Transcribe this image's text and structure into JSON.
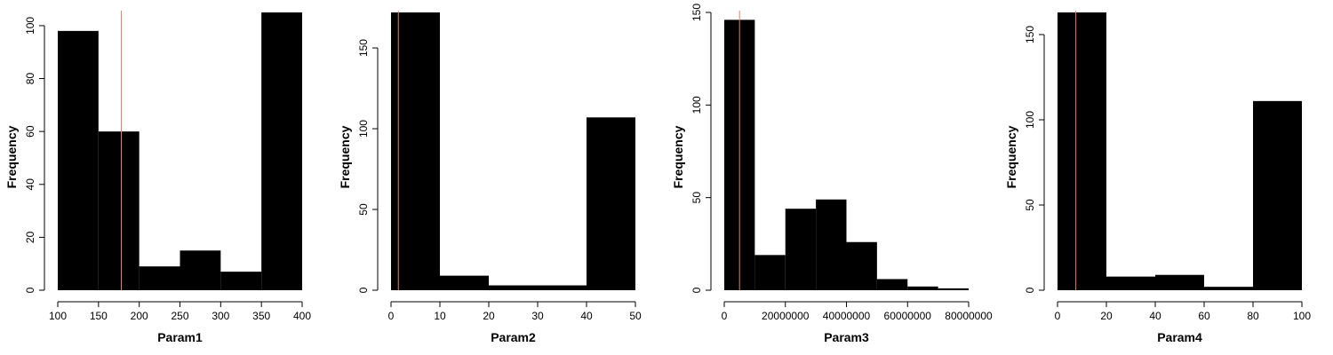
{
  "chart_data": [
    {
      "type": "bar",
      "xlabel": "Param1",
      "ylabel": "Frequency",
      "bins": [
        [
          100,
          150
        ],
        [
          150,
          200
        ],
        [
          200,
          250
        ],
        [
          250,
          300
        ],
        [
          300,
          350
        ],
        [
          350,
          400
        ]
      ],
      "values": [
        98,
        60,
        9,
        15,
        7,
        105
      ],
      "xlim": [
        100,
        400
      ],
      "ylim": [
        0,
        105
      ],
      "xticks": [
        100,
        150,
        200,
        250,
        300,
        350,
        400
      ],
      "yticks": [
        0,
        20,
        40,
        60,
        80,
        100
      ],
      "vline": 178,
      "grid": false
    },
    {
      "type": "bar",
      "xlabel": "Param2",
      "ylabel": "Frequency",
      "bins": [
        [
          0,
          10
        ],
        [
          10,
          20
        ],
        [
          20,
          30
        ],
        [
          30,
          40
        ],
        [
          40,
          50
        ]
      ],
      "values": [
        172,
        9,
        3,
        3,
        107
      ],
      "xlim": [
        0,
        50
      ],
      "ylim": [
        0,
        172
      ],
      "xticks": [
        0,
        10,
        20,
        30,
        40,
        50
      ],
      "yticks": [
        0,
        50,
        100,
        150
      ],
      "vline": 1.5,
      "grid": false
    },
    {
      "type": "bar",
      "xlabel": "Param3",
      "ylabel": "Frequency",
      "bins": [
        [
          0,
          10000000
        ],
        [
          10000000,
          20000000
        ],
        [
          20000000,
          30000000
        ],
        [
          30000000,
          40000000
        ],
        [
          40000000,
          50000000
        ],
        [
          50000000,
          60000000
        ],
        [
          60000000,
          70000000
        ],
        [
          70000000,
          80000000
        ]
      ],
      "values": [
        146,
        19,
        44,
        49,
        26,
        6,
        2,
        1
      ],
      "xlim": [
        0,
        80000000
      ],
      "ylim": [
        0,
        150
      ],
      "xticks": [
        0,
        20000000,
        40000000,
        60000000,
        80000000
      ],
      "yticks": [
        0,
        50,
        100,
        150
      ],
      "vline": 5000000,
      "grid": false
    },
    {
      "type": "bar",
      "xlabel": "Param4",
      "ylabel": "Frequency",
      "bins": [
        [
          0,
          20
        ],
        [
          20,
          40
        ],
        [
          40,
          60
        ],
        [
          60,
          80
        ],
        [
          80,
          100
        ]
      ],
      "values": [
        163,
        8,
        9,
        2,
        111
      ],
      "xlim": [
        0,
        100
      ],
      "ylim": [
        0,
        163
      ],
      "xticks": [
        0,
        20,
        40,
        60,
        80,
        100
      ],
      "yticks": [
        0,
        50,
        100,
        150
      ],
      "vline": 7.5,
      "grid": false
    }
  ],
  "colors": {
    "bar": "#000000",
    "vline": "#e8806a",
    "axis": "#000000"
  }
}
